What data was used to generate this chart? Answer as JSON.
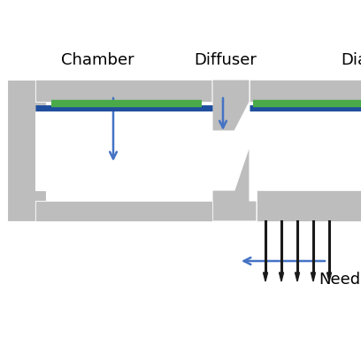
{
  "bg_color": "#ffffff",
  "gray": "#bdbdbd",
  "blue_line": "#1f4e9e",
  "green_line": "#4aaa4a",
  "arrow_blue": "#4472C4",
  "needle_color": "#1a1a1a",
  "labels": {
    "chamber": "Chamber",
    "diffuser": "Diffuser",
    "diaphragm": "Dia",
    "needle": "Need"
  },
  "label_fontsize": 13,
  "figsize": [
    4.08,
    4.08
  ],
  "dpi": 100
}
